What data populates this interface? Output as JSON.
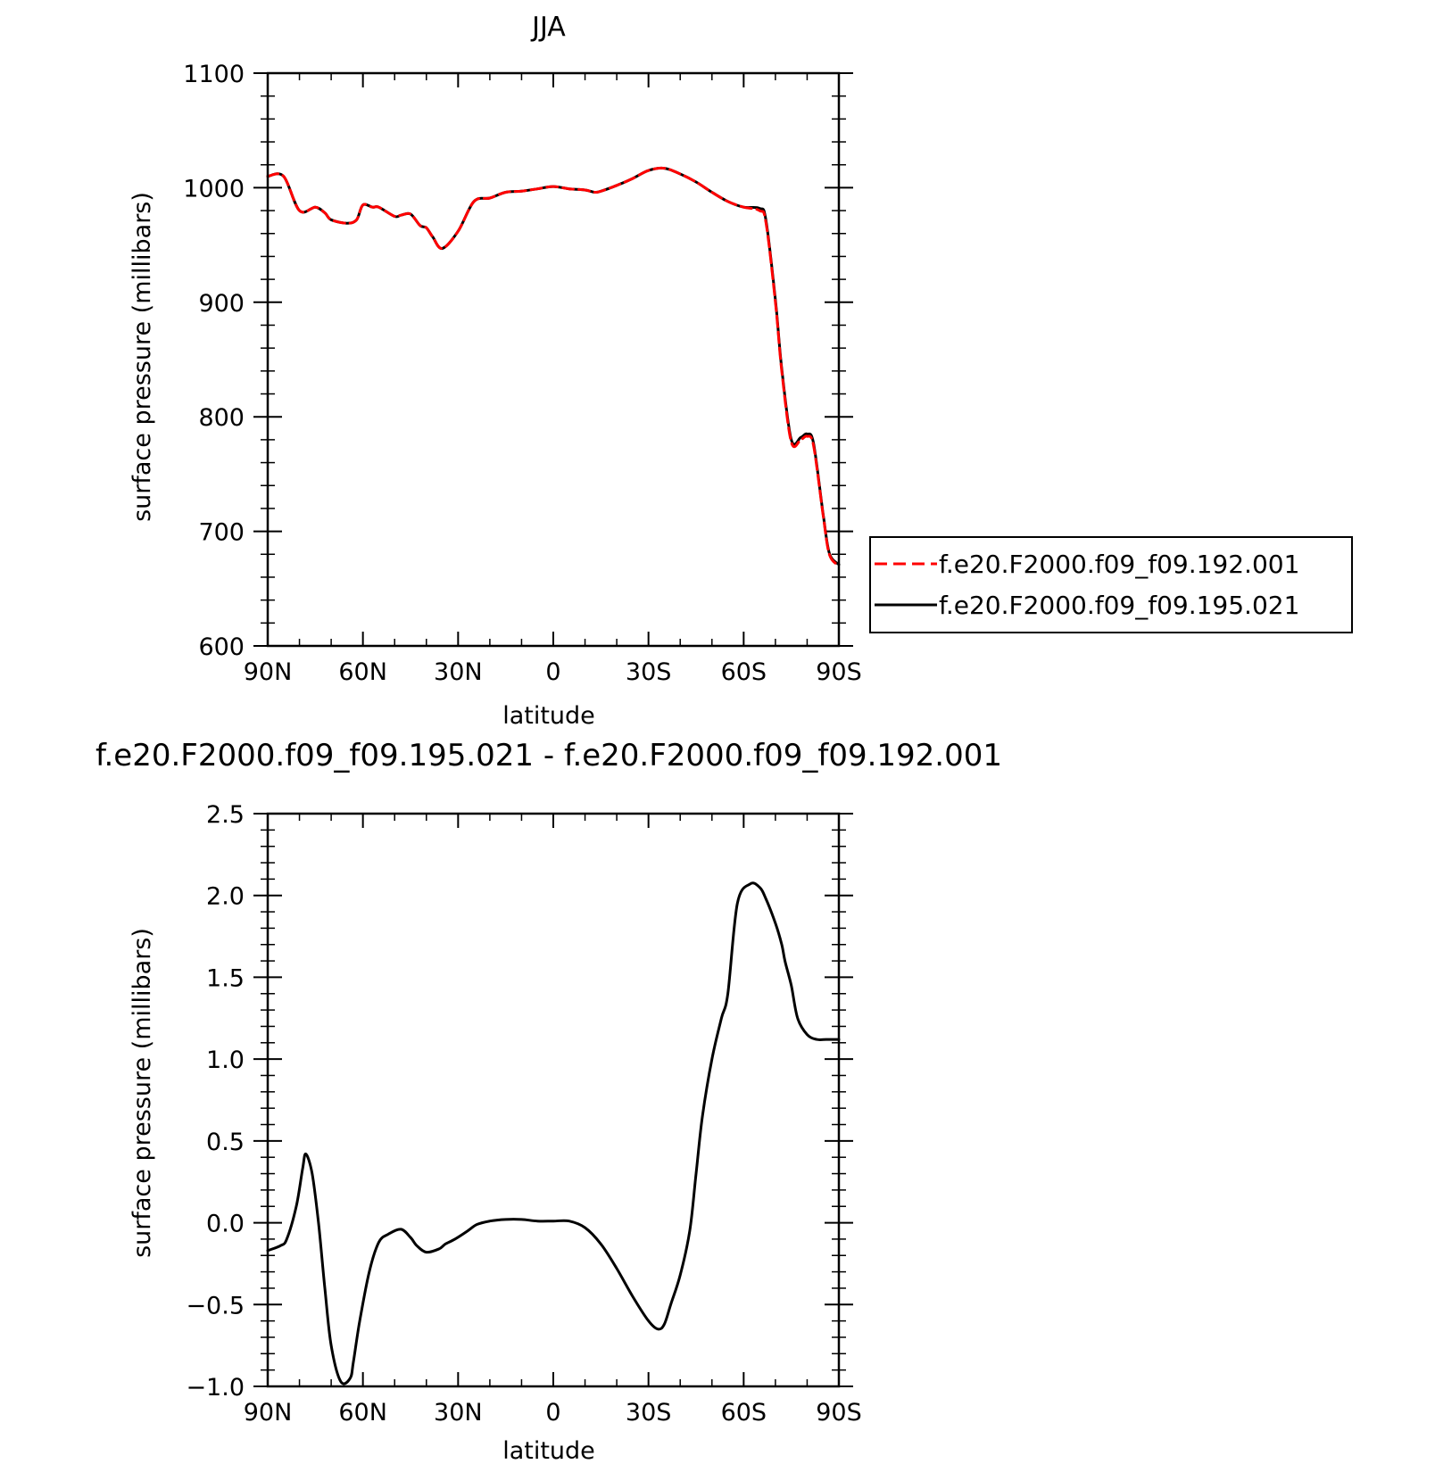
{
  "chart_data": [
    {
      "type": "line",
      "title": "JJA",
      "xlabel": "latitude",
      "ylabel": "surface pressure (millibars)",
      "xlim": [
        90,
        -90
      ],
      "ylim": [
        600,
        1100
      ],
      "x_ticks": [
        {
          "value": 90,
          "label": "90N"
        },
        {
          "value": 60,
          "label": "60N"
        },
        {
          "value": 30,
          "label": "30N"
        },
        {
          "value": 0,
          "label": "0"
        },
        {
          "value": -30,
          "label": "30S"
        },
        {
          "value": -60,
          "label": "60S"
        },
        {
          "value": -90,
          "label": "90S"
        }
      ],
      "y_ticks": [
        {
          "value": 600,
          "label": "600"
        },
        {
          "value": 700,
          "label": "700"
        },
        {
          "value": 800,
          "label": "800"
        },
        {
          "value": 900,
          "label": "900"
        },
        {
          "value": 1000,
          "label": "1000"
        },
        {
          "value": 1100,
          "label": "1100"
        }
      ],
      "legend_position": "outside-right",
      "x": [
        90,
        85,
        80,
        75,
        72,
        70,
        65,
        62,
        60,
        57,
        55,
        50,
        48,
        45,
        42,
        40,
        38,
        35,
        30,
        25,
        20,
        15,
        10,
        5,
        0,
        -5,
        -10,
        -13,
        -15,
        -20,
        -25,
        -30,
        -35,
        -40,
        -45,
        -50,
        -55,
        -60,
        -65,
        -67,
        -70,
        -72,
        -75,
        -78,
        -80,
        -82,
        -85,
        -87,
        -90
      ],
      "series": [
        {
          "name": "f.e20.F2000.f09_f09.192.001",
          "color": "#ff0000",
          "dash": "dashed",
          "values": [
            1010,
            1010,
            980,
            983,
            978,
            972,
            969,
            972,
            985,
            983,
            983,
            975,
            976,
            977,
            967,
            965,
            957,
            947,
            962,
            988,
            991,
            996,
            997,
            999,
            1001,
            999,
            998,
            996,
            997,
            1002,
            1008,
            1015,
            1017,
            1012,
            1005,
            996,
            988,
            983,
            980,
            970,
            900,
            840,
            778,
            780,
            783,
            775,
            715,
            680,
            670
          ]
        },
        {
          "name": "f.e20.F2000.f09_f09.195.021",
          "color": "#000000",
          "dash": "solid",
          "values": [
            1010,
            1010,
            980,
            983,
            978,
            972,
            969,
            972,
            985,
            983,
            983,
            975,
            976,
            977,
            967,
            965,
            957,
            947,
            962,
            988,
            991,
            996,
            997,
            999,
            1001,
            999,
            998,
            996,
            997,
            1002,
            1008,
            1015,
            1017,
            1012,
            1005,
            996,
            988,
            983,
            982,
            972,
            902,
            842,
            780,
            782,
            785,
            777,
            716,
            681,
            671
          ]
        }
      ]
    },
    {
      "type": "line",
      "title": "f.e20.F2000.f09_f09.195.021 - f.e20.F2000.f09_f09.192.001",
      "xlabel": "latitude",
      "ylabel": "surface pressure (millibars)",
      "xlim": [
        90,
        -90
      ],
      "ylim": [
        -1.0,
        2.5
      ],
      "x_ticks": [
        {
          "value": 90,
          "label": "90N"
        },
        {
          "value": 60,
          "label": "60N"
        },
        {
          "value": 30,
          "label": "30N"
        },
        {
          "value": 0,
          "label": "0"
        },
        {
          "value": -30,
          "label": "30S"
        },
        {
          "value": -60,
          "label": "60S"
        },
        {
          "value": -90,
          "label": "90S"
        }
      ],
      "y_ticks": [
        {
          "value": -1.0,
          "label": "−1.0"
        },
        {
          "value": -0.5,
          "label": "−0.5"
        },
        {
          "value": 0.0,
          "label": "0.0"
        },
        {
          "value": 0.5,
          "label": "0.5"
        },
        {
          "value": 1.0,
          "label": "1.0"
        },
        {
          "value": 1.5,
          "label": "1.5"
        },
        {
          "value": 2.0,
          "label": "2.0"
        },
        {
          "value": 2.5,
          "label": "2.5"
        }
      ],
      "x": [
        90,
        86,
        84,
        81,
        79,
        78,
        76,
        74,
        72,
        70,
        67,
        64,
        63,
        61,
        58,
        55,
        52,
        48,
        45,
        43,
        40,
        36,
        34,
        31,
        27,
        24,
        20,
        15,
        10,
        5,
        0,
        -5,
        -10,
        -15,
        -20,
        -25,
        -30,
        -33,
        -35,
        -37,
        -40,
        -43,
        -45,
        -47,
        -50,
        -53,
        -55,
        -58,
        -62,
        -65,
        -67,
        -70,
        -72,
        -73,
        -75,
        -77,
        -80,
        -83,
        -86,
        -88,
        -90
      ],
      "series": [
        {
          "name": "",
          "color": "#000000",
          "dash": "solid",
          "values": [
            -0.17,
            -0.14,
            -0.1,
            0.1,
            0.33,
            0.42,
            0.3,
            0.0,
            -0.4,
            -0.75,
            -0.97,
            -0.95,
            -0.85,
            -0.6,
            -0.3,
            -0.12,
            -0.07,
            -0.04,
            -0.09,
            -0.14,
            -0.18,
            -0.16,
            -0.13,
            -0.1,
            -0.05,
            -0.01,
            0.01,
            0.02,
            0.02,
            0.01,
            0.01,
            0.01,
            -0.03,
            -0.13,
            -0.28,
            -0.45,
            -0.6,
            -0.65,
            -0.62,
            -0.5,
            -0.32,
            -0.05,
            0.3,
            0.65,
            1.0,
            1.25,
            1.4,
            1.95,
            2.07,
            2.05,
            1.98,
            1.83,
            1.7,
            1.6,
            1.45,
            1.25,
            1.15,
            1.12,
            1.12,
            1.12,
            1.12
          ]
        }
      ]
    }
  ]
}
